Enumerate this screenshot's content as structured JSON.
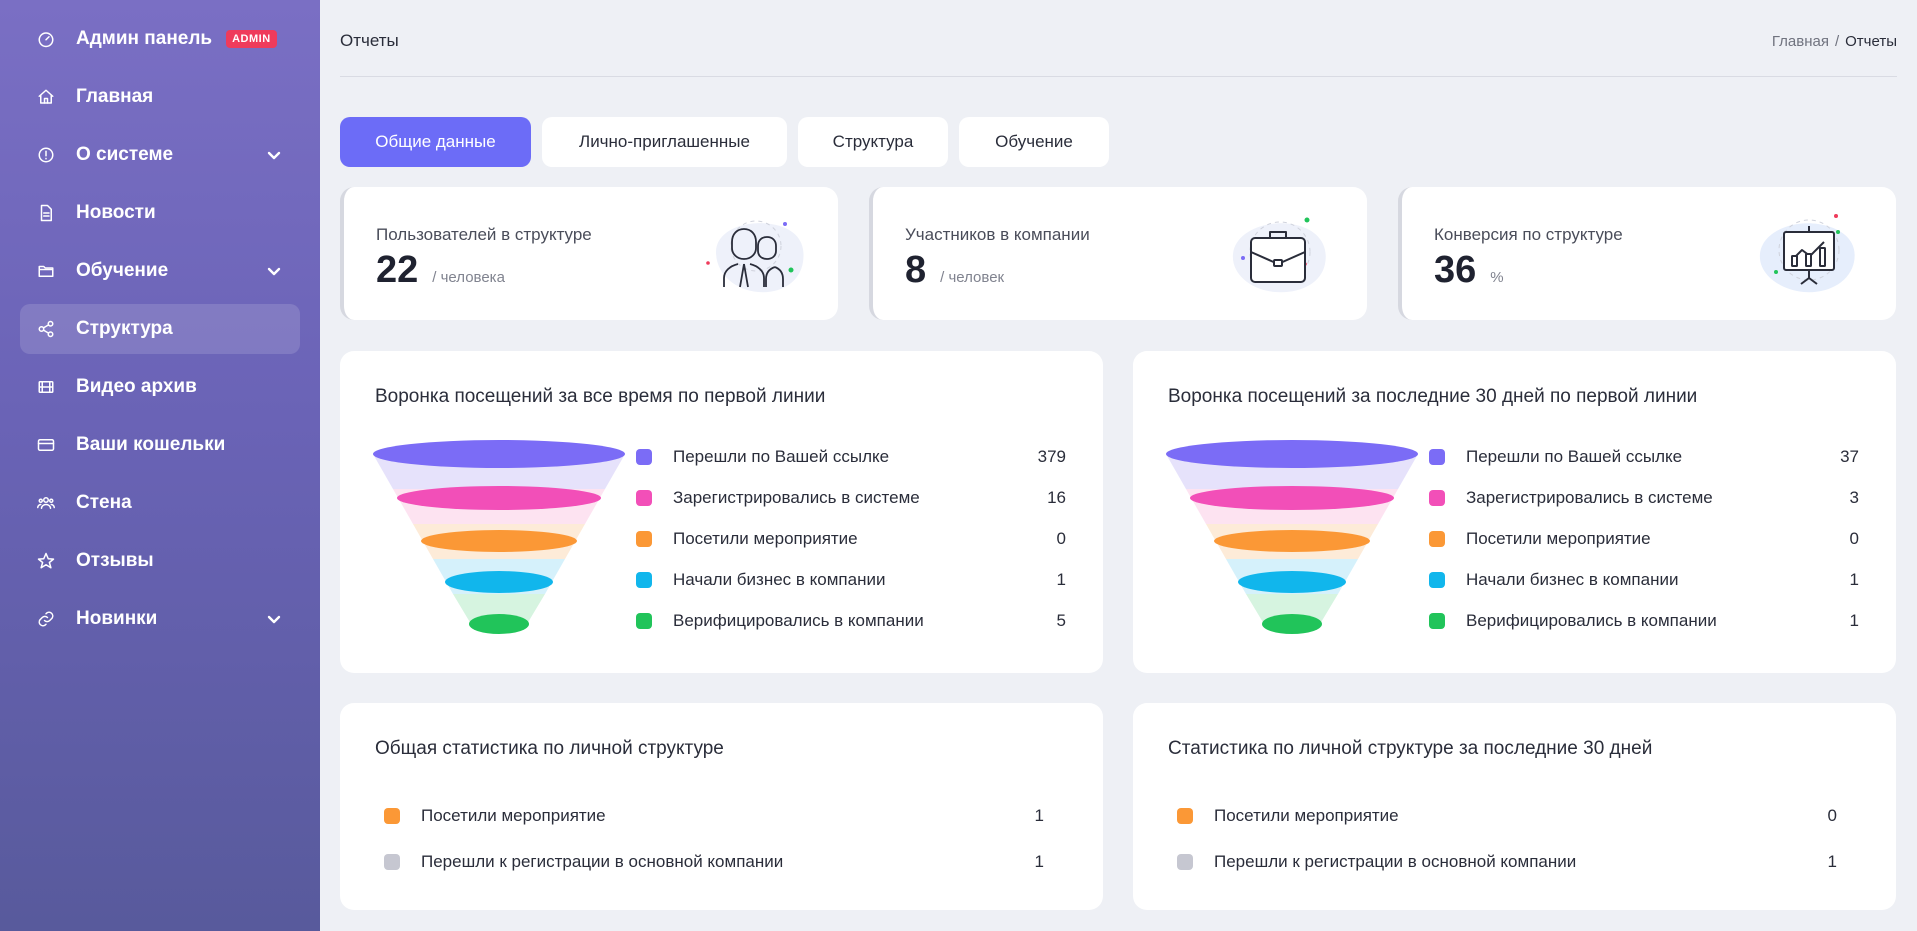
{
  "sidebar": {
    "items": [
      {
        "label": "Админ панель",
        "icon": "dashboard-icon",
        "badge": "ADMIN",
        "chevron": false,
        "active": false
      },
      {
        "label": "Главная",
        "icon": "home-icon",
        "chevron": false,
        "active": false
      },
      {
        "label": "О системе",
        "icon": "info-icon",
        "chevron": true,
        "active": false
      },
      {
        "label": "Новости",
        "icon": "document-icon",
        "chevron": false,
        "active": false
      },
      {
        "label": "Обучение",
        "icon": "folder-icon",
        "chevron": true,
        "active": false
      },
      {
        "label": "Структура",
        "icon": "share-icon",
        "chevron": false,
        "active": true
      },
      {
        "label": "Видео архив",
        "icon": "film-icon",
        "chevron": false,
        "active": false
      },
      {
        "label": "Ваши кошельки",
        "icon": "credit-card-icon",
        "chevron": false,
        "active": false
      },
      {
        "label": "Стена",
        "icon": "users-icon",
        "chevron": false,
        "active": false
      },
      {
        "label": "Отзывы",
        "icon": "star-icon",
        "chevron": false,
        "active": false
      },
      {
        "label": "Новинки",
        "icon": "link-icon",
        "chevron": true,
        "active": false
      }
    ]
  },
  "header": {
    "title": "Отчеты",
    "breadcrumb": {
      "home": "Главная",
      "separator": "/",
      "current": "Отчеты"
    }
  },
  "tabs": [
    {
      "label": "Общие данные",
      "active": true
    },
    {
      "label": "Лично-приглашенные",
      "active": false
    },
    {
      "label": "Структура",
      "active": false
    },
    {
      "label": "Обучение",
      "active": false
    }
  ],
  "stats": [
    {
      "label": "Пользователей в структуре",
      "value": "22",
      "unit": "/ человека",
      "icon": "people-icon"
    },
    {
      "label": "Участников в компании",
      "value": "8",
      "unit": "/ человек",
      "icon": "briefcase-icon"
    },
    {
      "label": "Конверсия по структуре",
      "value": "36",
      "unit": "%",
      "icon": "presentation-chart-icon"
    }
  ],
  "funnels": [
    {
      "title": "Воронка посещений за все время по первой линии",
      "rows": [
        {
          "label": "Перешли по Вашей ссылке",
          "value": "379"
        },
        {
          "label": "Зарегистрировались в системе",
          "value": "16"
        },
        {
          "label": "Посетили мероприятие",
          "value": "0"
        },
        {
          "label": "Начали бизнес в компании",
          "value": "1"
        },
        {
          "label": "Верифицировались в компании",
          "value": "5"
        }
      ]
    },
    {
      "title": "Воронка посещений за последние 30 дней по первой линии",
      "rows": [
        {
          "label": "Перешли по Вашей ссылке",
          "value": "37"
        },
        {
          "label": "Зарегистрировались в системе",
          "value": "3"
        },
        {
          "label": "Посетили мероприятие",
          "value": "0"
        },
        {
          "label": "Начали бизнес в компании",
          "value": "1"
        },
        {
          "label": "Верифицировались в компании",
          "value": "1"
        }
      ]
    }
  ],
  "funnel_colors": [
    "#7b6cf6",
    "#f24fb8",
    "#fb9836",
    "#11b6ec",
    "#21c45a"
  ],
  "funnel_band_colors": [
    "#e6e2fb",
    "#fde3f1",
    "#fdebd8",
    "#d5f1fb",
    "#d6f4e0"
  ],
  "structure_stats": [
    {
      "title": "Общая статистика по личной структуре",
      "rows": [
        {
          "label": "Посетили мероприятие",
          "value": "1",
          "color": "#fb9836"
        },
        {
          "label": "Перешли к регистрации в основной компании",
          "value": "1",
          "color": "#c6c7d1"
        }
      ]
    },
    {
      "title": "Статистика по личной структуре за последние 30 дней",
      "rows": [
        {
          "label": "Посетили мероприятие",
          "value": "0",
          "color": "#fb9836"
        },
        {
          "label": "Перешли к регистрации в основной компании",
          "value": "1",
          "color": "#c6c7d1"
        }
      ]
    }
  ]
}
